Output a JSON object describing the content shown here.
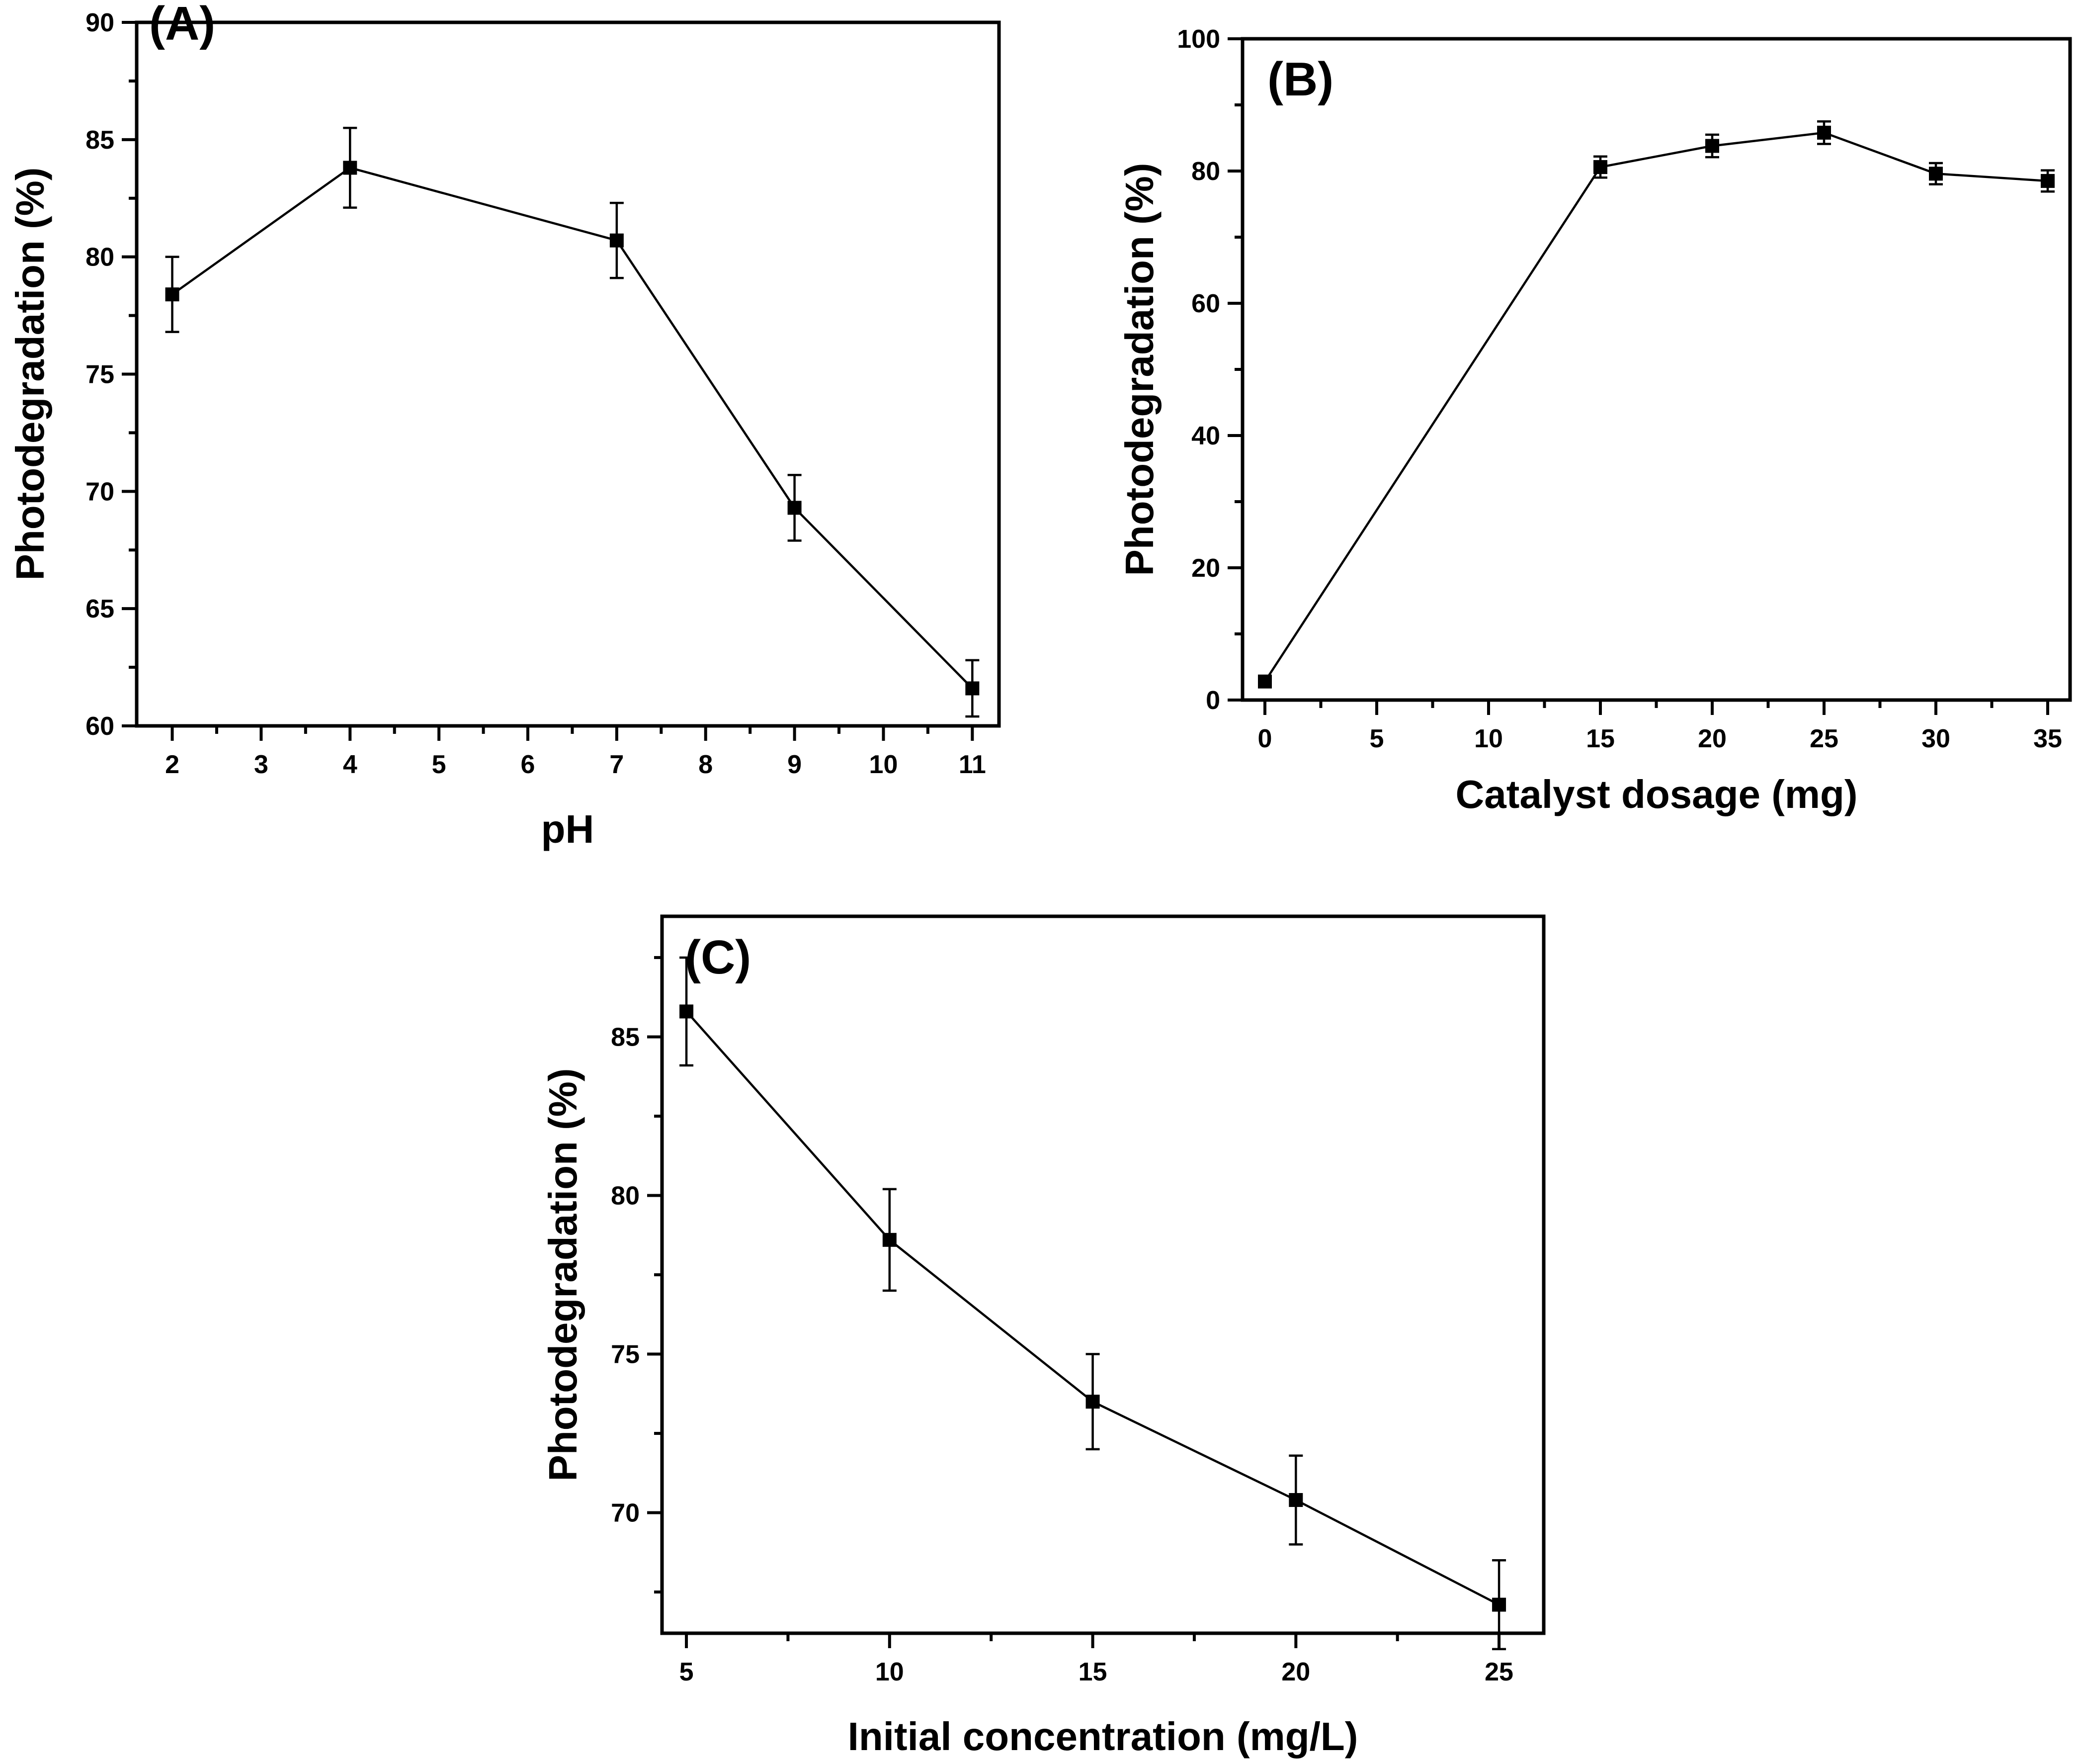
{
  "chart_data": [
    {
      "panel": "A",
      "type": "line",
      "panel_label": "(A)",
      "xlabel": "pH",
      "ylabel": "Photodegradation (%)",
      "xlim": [
        1.6,
        11.3
      ],
      "ylim": [
        60,
        90
      ],
      "xticks_major": [
        2,
        3,
        4,
        5,
        6,
        7,
        8,
        9,
        10,
        11
      ],
      "xticks_minor": [
        2.5,
        3.5,
        4.5,
        5.5,
        6.5,
        7.5,
        8.5,
        9.5,
        10.5
      ],
      "yticks_major": [
        60,
        65,
        70,
        75,
        80,
        85,
        90
      ],
      "yticks_minor": [
        62.5,
        67.5,
        72.5,
        77.5,
        82.5,
        87.5
      ],
      "x": [
        2,
        4,
        7,
        9,
        11
      ],
      "y": [
        78.4,
        83.8,
        80.7,
        69.3,
        61.6
      ],
      "error": [
        1.6,
        1.7,
        1.6,
        1.4,
        1.2
      ]
    },
    {
      "panel": "B",
      "type": "line",
      "panel_label": "(B)",
      "xlabel": "Catalyst dosage (mg)",
      "ylabel": "Photodegradation (%)",
      "xlim": [
        -1,
        36
      ],
      "ylim": [
        0,
        100
      ],
      "xticks_major": [
        0,
        5,
        10,
        15,
        20,
        25,
        30,
        35
      ],
      "xticks_minor": [
        2.5,
        7.5,
        12.5,
        17.5,
        22.5,
        27.5,
        32.5
      ],
      "yticks_major": [
        0,
        20,
        40,
        60,
        80,
        100
      ],
      "yticks_minor": [
        10,
        30,
        50,
        70,
        90
      ],
      "x": [
        0,
        15,
        20,
        25,
        30,
        35
      ],
      "y": [
        2.8,
        80.6,
        83.8,
        85.8,
        79.6,
        78.5
      ],
      "error": [
        0.8,
        1.6,
        1.7,
        1.7,
        1.6,
        1.6
      ]
    },
    {
      "panel": "C",
      "type": "line",
      "panel_label": "(C)",
      "xlabel": "Initial concentration (mg/L)",
      "ylabel": "Photodegradation (%)",
      "xlim": [
        4.4,
        26.1
      ],
      "ylim": [
        66.2,
        88.8
      ],
      "xticks_major": [
        5,
        10,
        15,
        20,
        25
      ],
      "xticks_minor": [
        7.5,
        12.5,
        17.5,
        22.5
      ],
      "yticks_major": [
        70,
        75,
        80,
        85
      ],
      "yticks_minor": [
        67.5,
        72.5,
        77.5,
        82.5,
        87.5
      ],
      "x": [
        5,
        10,
        15,
        20,
        25
      ],
      "y": [
        85.8,
        78.6,
        73.5,
        70.4,
        67.1
      ],
      "error": [
        1.7,
        1.6,
        1.5,
        1.4,
        1.4
      ]
    }
  ]
}
